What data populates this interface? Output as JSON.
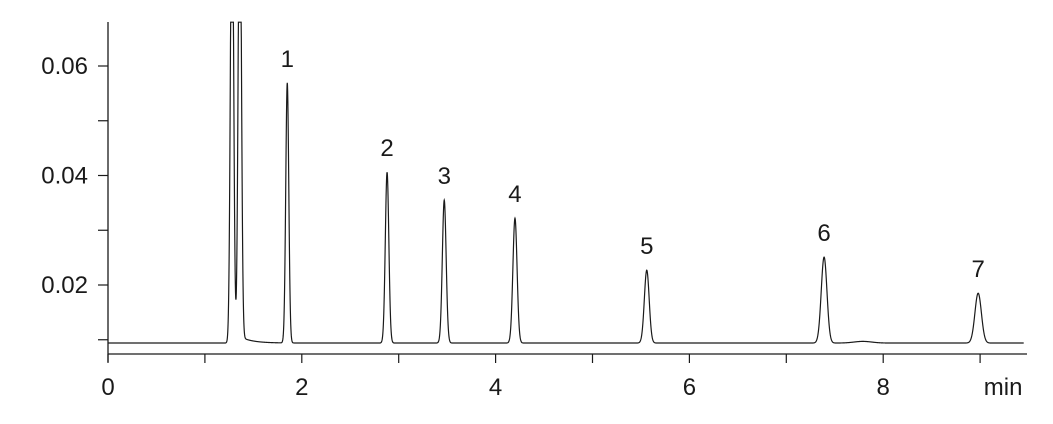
{
  "chart_data": {
    "type": "line",
    "title": "",
    "xlabel": "min",
    "ylabel": "",
    "xlim": [
      0,
      9.45
    ],
    "ylim": [
      0.0074,
      0.068
    ],
    "grid": false,
    "legend": "none",
    "line_color": "#1a1a1a",
    "baseline": 0.0094,
    "x_ticks": [
      0,
      1,
      2,
      3,
      4,
      5,
      6,
      7,
      8,
      9
    ],
    "x_tick_labels": [
      "0",
      "",
      "2",
      "",
      "4",
      "",
      "6",
      "",
      "8",
      "min"
    ],
    "y_ticks": [
      0.01,
      0.02,
      0.03,
      0.04,
      0.05,
      0.06
    ],
    "y_tick_labels": [
      "",
      "0.02",
      "",
      "0.04",
      "",
      "0.06"
    ],
    "solvent_front": {
      "times": [
        1.28,
        1.36
      ],
      "offscale": true,
      "dip_min": 0.0197
    },
    "peaks": [
      {
        "label": "1",
        "time": 1.85,
        "height": 0.0569
      },
      {
        "label": "2",
        "time": 2.88,
        "height": 0.0406
      },
      {
        "label": "3",
        "time": 3.47,
        "height": 0.0355
      },
      {
        "label": "4",
        "time": 4.2,
        "height": 0.0322
      },
      {
        "label": "5",
        "time": 5.56,
        "height": 0.0227
      },
      {
        "label": "6",
        "time": 7.39,
        "height": 0.0251
      },
      {
        "label": "",
        "time": 7.79,
        "height": 0.0097
      },
      {
        "label": "7",
        "time": 8.98,
        "height": 0.0185
      }
    ]
  }
}
